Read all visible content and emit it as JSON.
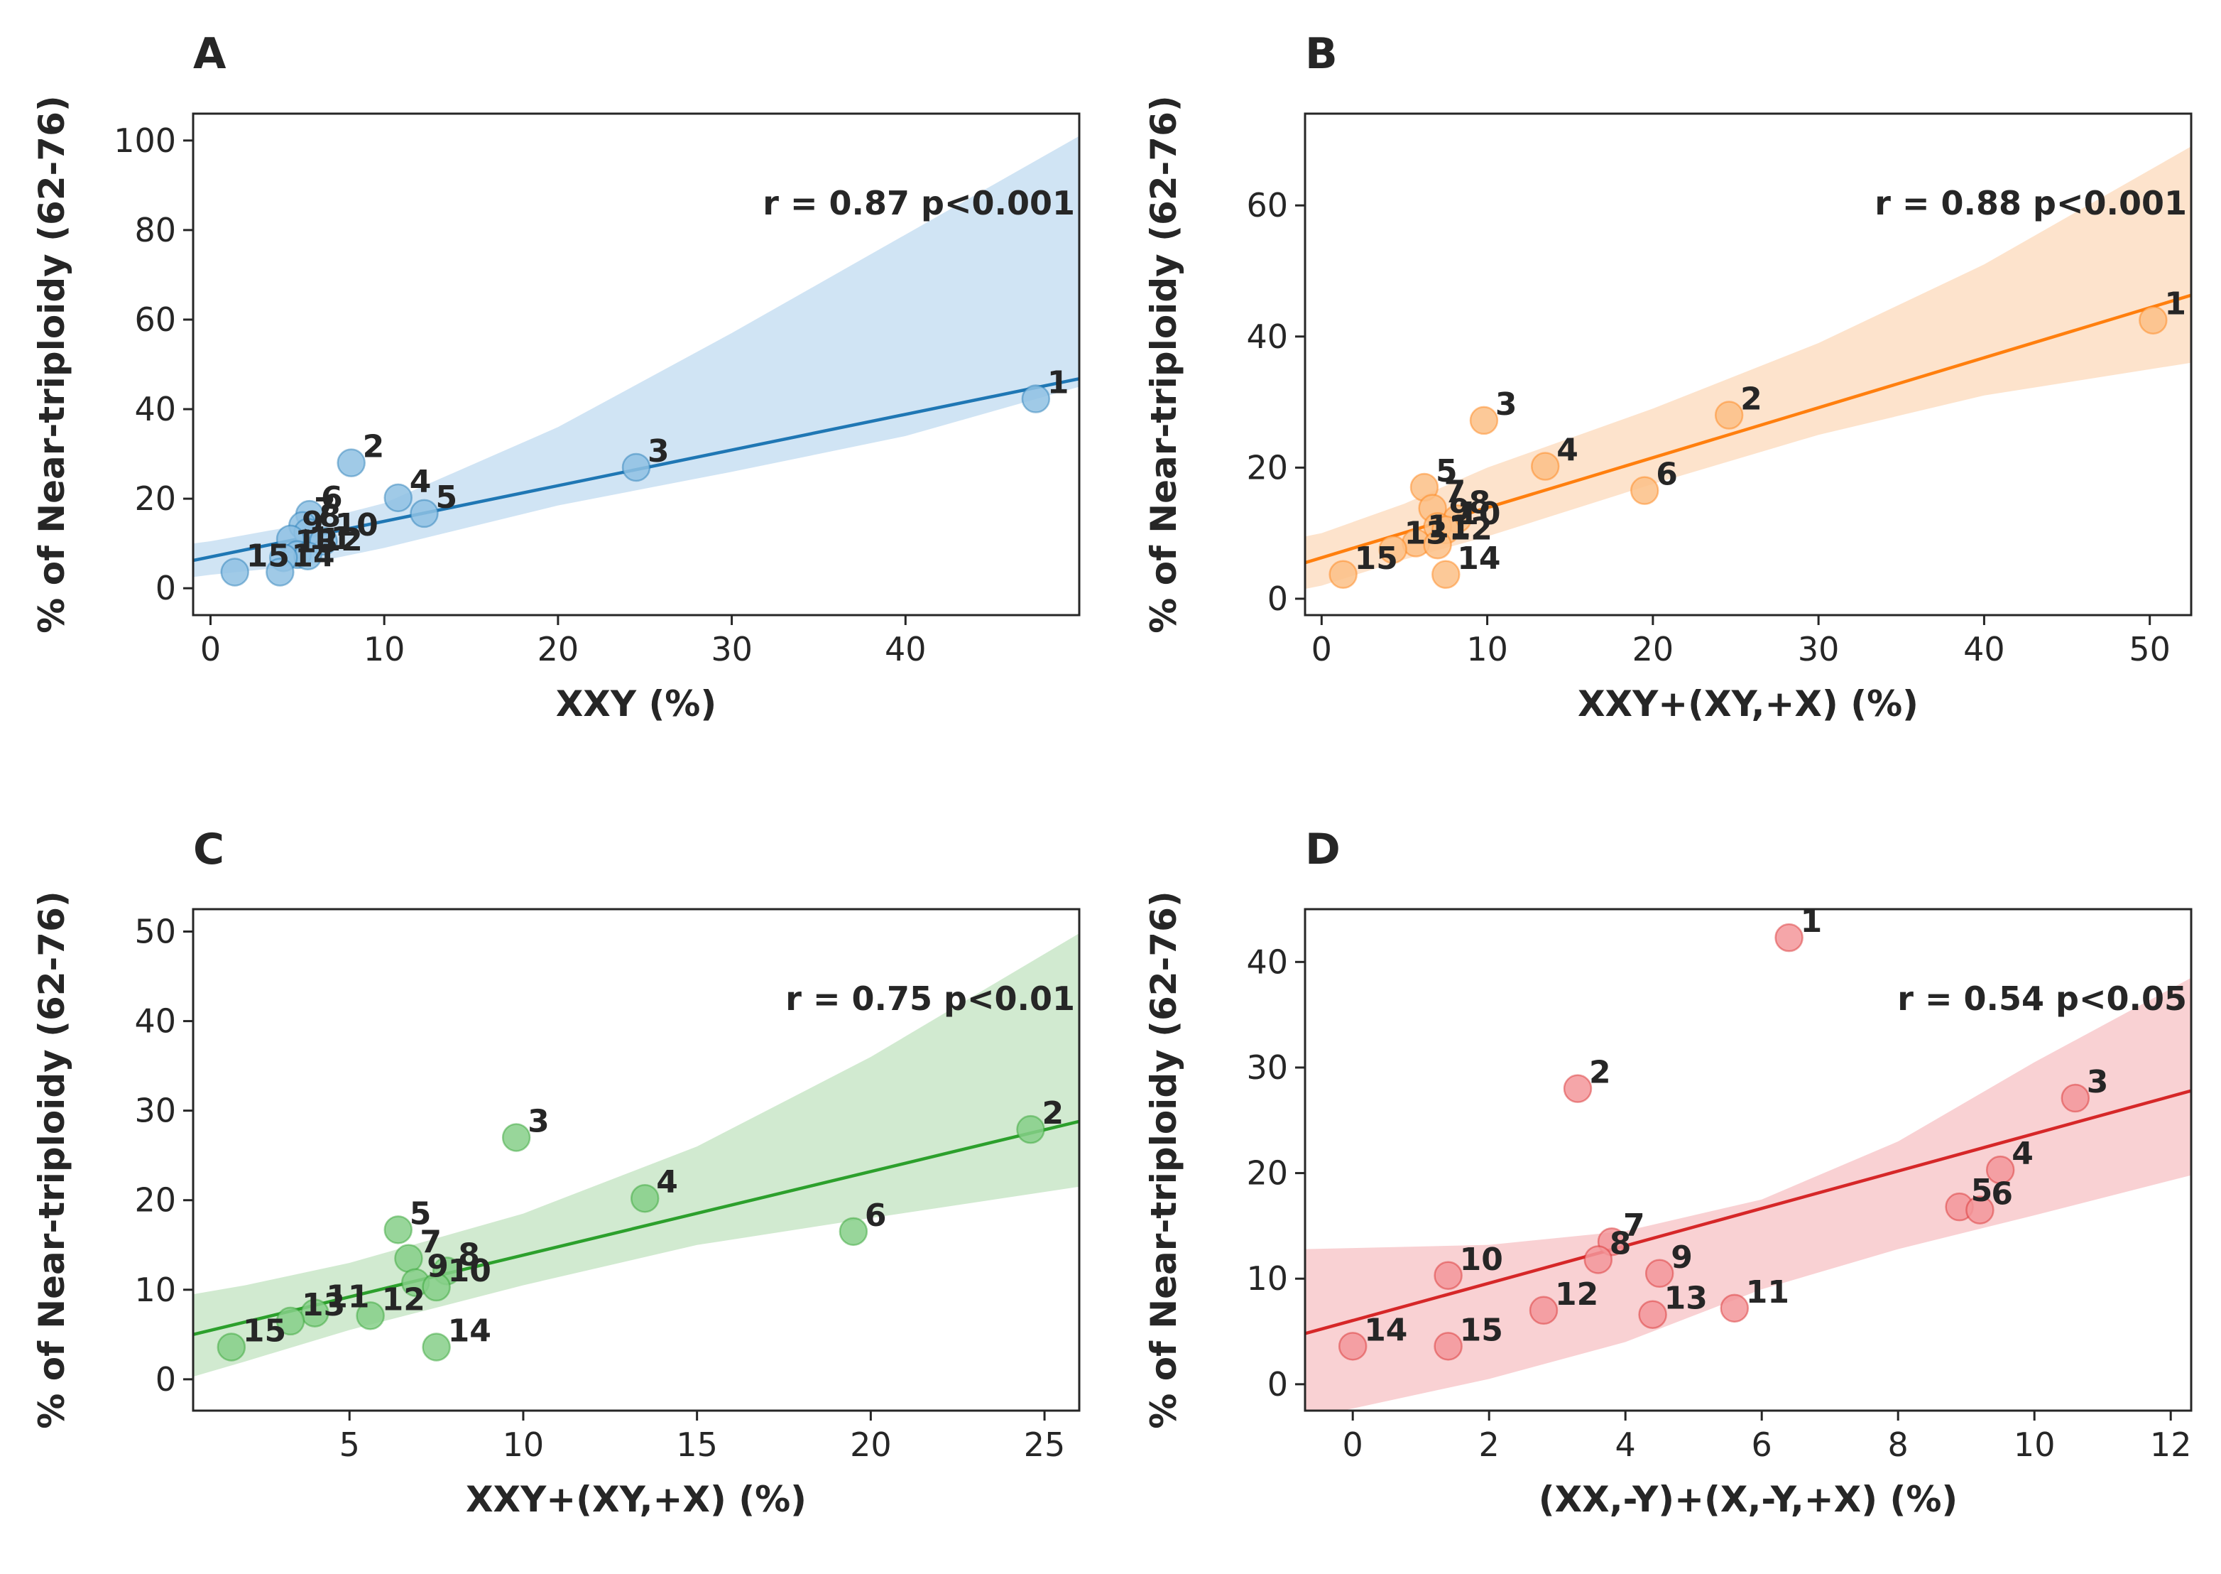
{
  "chart_data": [
    {
      "id": "A",
      "type": "scatter",
      "panel_label": "A",
      "xlabel": "XXY (%)",
      "ylabel": "% of Near-triploidy (62-76)",
      "xlim": [
        -1,
        50
      ],
      "ylim": [
        -6,
        106
      ],
      "xticks": [
        0,
        10,
        20,
        30,
        40
      ],
      "yticks": [
        0,
        20,
        40,
        60,
        80,
        100
      ],
      "color": "#1f77b4",
      "point_fill": "#8fc1e3",
      "band_color": "#cde3f3",
      "annotation": "r = 0.87 p<0.001",
      "fit": {
        "x": [
          -1,
          50
        ],
        "y": [
          6.2,
          46.8
        ]
      },
      "band": {
        "x": [
          -1,
          0,
          5,
          10,
          20,
          30,
          40,
          50
        ],
        "upper": [
          10,
          10.5,
          14,
          19,
          36,
          57,
          79,
          101
        ],
        "lower": [
          2.5,
          3,
          5,
          9,
          18.5,
          26,
          34,
          45
        ]
      },
      "points": [
        {
          "label": "1",
          "x": 47.5,
          "y": 42.3
        },
        {
          "label": "2",
          "x": 8.1,
          "y": 28
        },
        {
          "label": "3",
          "x": 24.5,
          "y": 27
        },
        {
          "label": "4",
          "x": 10.8,
          "y": 20.2
        },
        {
          "label": "5",
          "x": 12.3,
          "y": 16.7
        },
        {
          "label": "6",
          "x": 5.7,
          "y": 16.5
        },
        {
          "label": "7",
          "x": 5.3,
          "y": 14.0
        },
        {
          "label": "8",
          "x": 5.6,
          "y": 12.5
        },
        {
          "label": "9",
          "x": 4.6,
          "y": 11.0
        },
        {
          "label": "10",
          "x": 6.5,
          "y": 10.5
        },
        {
          "label": "11",
          "x": 5.0,
          "y": 7.5
        },
        {
          "label": "12",
          "x": 5.6,
          "y": 7.2
        },
        {
          "label": "13",
          "x": 4.2,
          "y": 6.8
        },
        {
          "label": "14",
          "x": 4.0,
          "y": 3.6
        },
        {
          "label": "15",
          "x": 1.4,
          "y": 3.6
        }
      ]
    },
    {
      "id": "B",
      "type": "scatter",
      "panel_label": "B",
      "xlabel": "XXY+(XY,+X) (%)",
      "ylabel": "% of Near-triploidy (62-76)",
      "xlim": [
        -1,
        52.5
      ],
      "ylim": [
        -2.5,
        74
      ],
      "xticks": [
        0,
        10,
        20,
        30,
        40,
        50
      ],
      "yticks": [
        0,
        20,
        40,
        60
      ],
      "color": "#ff7f0e",
      "point_fill": "#fbbf86",
      "band_color": "#fde2c9",
      "annotation": "r = 0.88 p<0.001",
      "fit": {
        "x": [
          -1,
          52.5
        ],
        "y": [
          5.5,
          46.3
        ]
      },
      "band": {
        "x": [
          -1,
          0,
          5,
          10,
          20,
          30,
          40,
          52.5
        ],
        "upper": [
          9.5,
          10,
          14.5,
          20,
          29,
          39,
          51,
          69
        ],
        "lower": [
          1.5,
          2,
          6,
          9.5,
          17.5,
          25,
          31,
          36
        ]
      },
      "points": [
        {
          "label": "1",
          "x": 50.2,
          "y": 42.5
        },
        {
          "label": "2",
          "x": 24.6,
          "y": 28
        },
        {
          "label": "3",
          "x": 9.8,
          "y": 27.2
        },
        {
          "label": "4",
          "x": 13.5,
          "y": 20.2
        },
        {
          "label": "5",
          "x": 6.2,
          "y": 17.0
        },
        {
          "label": "6",
          "x": 19.5,
          "y": 16.5
        },
        {
          "label": "7",
          "x": 6.7,
          "y": 13.8
        },
        {
          "label": "8",
          "x": 8.2,
          "y": 12.2
        },
        {
          "label": "9",
          "x": 7.0,
          "y": 11.0
        },
        {
          "label": "10",
          "x": 7.5,
          "y": 10.5
        },
        {
          "label": "11",
          "x": 5.7,
          "y": 8.5
        },
        {
          "label": "12",
          "x": 7.0,
          "y": 8.2
        },
        {
          "label": "13",
          "x": 4.3,
          "y": 7.5
        },
        {
          "label": "14",
          "x": 7.5,
          "y": 3.7
        },
        {
          "label": "15",
          "x": 1.3,
          "y": 3.7
        }
      ]
    },
    {
      "id": "C",
      "type": "scatter",
      "panel_label": "C",
      "xlabel": "XXY+(XY,+X) (%)",
      "ylabel": "% of Near-triploidy (62-76)",
      "xlim": [
        0.5,
        26
      ],
      "ylim": [
        -3.5,
        52.5
      ],
      "xticks": [
        5,
        10,
        15,
        20,
        25
      ],
      "yticks": [
        0,
        10,
        20,
        30,
        40,
        50
      ],
      "color": "#2ca02c",
      "point_fill": "#86cf88",
      "band_color": "#cfe9cd",
      "annotation": "r = 0.75 p<0.01",
      "fit": {
        "x": [
          0.5,
          26
        ],
        "y": [
          5.0,
          28.8
        ]
      },
      "band": {
        "x": [
          0.5,
          2,
          5,
          10,
          15,
          20,
          26
        ],
        "upper": [
          9.5,
          10.5,
          13,
          18.5,
          26,
          36,
          49.8
        ],
        "lower": [
          0.3,
          2,
          5.5,
          10.5,
          15,
          18,
          21.5
        ]
      },
      "points": [
        {
          "label": "2",
          "x": 24.6,
          "y": 27.9
        },
        {
          "label": "3",
          "x": 9.8,
          "y": 27.0
        },
        {
          "label": "4",
          "x": 13.5,
          "y": 20.2
        },
        {
          "label": "5",
          "x": 6.4,
          "y": 16.7
        },
        {
          "label": "6",
          "x": 19.5,
          "y": 16.5
        },
        {
          "label": "7",
          "x": 6.7,
          "y": 13.5
        },
        {
          "label": "8",
          "x": 7.8,
          "y": 12.1
        },
        {
          "label": "9",
          "x": 6.9,
          "y": 10.8
        },
        {
          "label": "10",
          "x": 7.5,
          "y": 10.3
        },
        {
          "label": "11",
          "x": 4.0,
          "y": 7.4
        },
        {
          "label": "12",
          "x": 5.6,
          "y": 7.1
        },
        {
          "label": "13",
          "x": 3.3,
          "y": 6.5
        },
        {
          "label": "14",
          "x": 7.5,
          "y": 3.6
        },
        {
          "label": "15",
          "x": 1.6,
          "y": 3.6
        }
      ]
    },
    {
      "id": "D",
      "type": "scatter",
      "panel_label": "D",
      "xlabel": "(XX,-Y)+(X,-Y,+X) (%)",
      "ylabel": "% of Near-triploidy (62-76)",
      "xlim": [
        -0.7,
        12.3
      ],
      "ylim": [
        -2.5,
        45
      ],
      "xticks": [
        0,
        2,
        4,
        6,
        8,
        10,
        12
      ],
      "yticks": [
        0,
        10,
        20,
        30,
        40
      ],
      "color": "#d62728",
      "point_fill": "#f3969a",
      "band_color": "#f9cfd1",
      "annotation": "r = 0.54 p<0.05",
      "fit": {
        "x": [
          -0.7,
          12.3
        ],
        "y": [
          4.8,
          27.8
        ]
      },
      "band": {
        "x": [
          -0.7,
          0,
          2,
          4,
          6,
          8,
          10,
          12.3
        ],
        "upper": [
          12.8,
          12.9,
          13.2,
          14.5,
          17.5,
          23,
          30.5,
          38.5
        ],
        "lower": [
          -3.2,
          -2.3,
          0.5,
          4,
          9,
          12.8,
          16,
          19.8
        ]
      },
      "points": [
        {
          "label": "1",
          "x": 6.4,
          "y": 42.3
        },
        {
          "label": "2",
          "x": 3.3,
          "y": 28
        },
        {
          "label": "3",
          "x": 10.6,
          "y": 27.1
        },
        {
          "label": "4",
          "x": 9.5,
          "y": 20.3
        },
        {
          "label": "5",
          "x": 8.9,
          "y": 16.8
        },
        {
          "label": "6",
          "x": 9.2,
          "y": 16.5
        },
        {
          "label": "7",
          "x": 3.8,
          "y": 13.5
        },
        {
          "label": "8",
          "x": 3.6,
          "y": 11.8
        },
        {
          "label": "9",
          "x": 4.5,
          "y": 10.5
        },
        {
          "label": "10",
          "x": 1.4,
          "y": 10.3
        },
        {
          "label": "11",
          "x": 5.6,
          "y": 7.2
        },
        {
          "label": "12",
          "x": 2.8,
          "y": 7.0
        },
        {
          "label": "13",
          "x": 4.4,
          "y": 6.6
        },
        {
          "label": "14",
          "x": 0.0,
          "y": 3.6
        },
        {
          "label": "15",
          "x": 1.4,
          "y": 3.6
        }
      ]
    }
  ]
}
